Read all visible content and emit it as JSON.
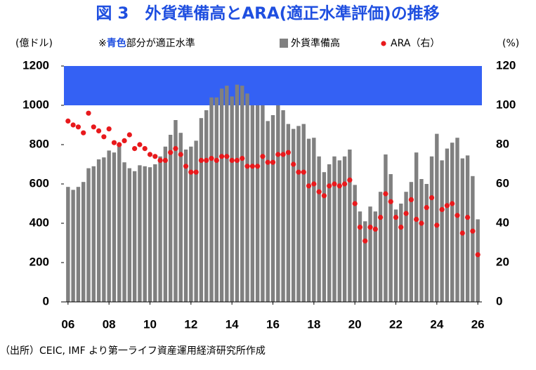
{
  "chart_data": {
    "type": "combo",
    "title": "図 3　外貨準備高とARA(適正水準評価)の推移",
    "y_label": "(億ドル)",
    "y2_label": "(%)",
    "note": {
      "prefix": "※",
      "highlight": "青色",
      "suffix": "部分が適正水準",
      "highlight_color": "#1f4fe0"
    },
    "band": {
      "from": 1000,
      "to": 1200,
      "color": "#3461f4"
    },
    "source": "（出所）CEIC, IMF より第一ライフ資産運用経済研究所作成",
    "x": [
      2006,
      2006.25,
      2006.5,
      2006.75,
      2007,
      2007.25,
      2007.5,
      2007.75,
      2008,
      2008.25,
      2008.5,
      2008.75,
      2009,
      2009.25,
      2009.5,
      2009.75,
      2010,
      2010.25,
      2010.5,
      2010.75,
      2011,
      2011.25,
      2011.5,
      2011.75,
      2012,
      2012.25,
      2012.5,
      2012.75,
      2013,
      2013.25,
      2013.5,
      2013.75,
      2014,
      2014.25,
      2014.5,
      2014.75,
      2015,
      2015.25,
      2015.5,
      2015.75,
      2016,
      2016.25,
      2016.5,
      2016.75,
      2017,
      2017.25,
      2017.5,
      2017.75,
      2018,
      2018.25,
      2018.5,
      2018.75,
      2019,
      2019.25,
      2019.5,
      2019.75,
      2020,
      2020.25,
      2020.5,
      2020.75,
      2021,
      2021.25,
      2021.5,
      2021.75,
      2022,
      2022.25,
      2022.5,
      2022.75,
      2023,
      2023.25,
      2023.5,
      2023.75,
      2024,
      2024.25,
      2024.5,
      2024.75,
      2025,
      2025.25,
      2025.5,
      2025.75,
      2026
    ],
    "series": [
      {
        "name": "外貨準備高",
        "type": "bar",
        "color": "#808080",
        "values": [
          585,
          570,
          585,
          610,
          680,
          690,
          725,
          735,
          770,
          760,
          800,
          710,
          680,
          665,
          695,
          690,
          685,
          700,
          740,
          790,
          850,
          925,
          860,
          775,
          790,
          820,
          935,
          975,
          1040,
          1040,
          1085,
          1100,
          1045,
          1105,
          1100,
          1060,
          1000,
          1000,
          1000,
          920,
          950,
          1000,
          975,
          905,
          880,
          895,
          905,
          830,
          835,
          740,
          660,
          700,
          740,
          720,
          740,
          775,
          595,
          460,
          410,
          485,
          460,
          560,
          750,
          650,
          470,
          500,
          560,
          610,
          760,
          625,
          600,
          740,
          855,
          720,
          780,
          810,
          835,
          730,
          745,
          640,
          420
        ]
      },
      {
        "name": "ARA（右）",
        "type": "scatter",
        "color": "#e8191c",
        "axis": "y2",
        "values": [
          92,
          90,
          89,
          86,
          96,
          89,
          87,
          84,
          88,
          81,
          80,
          82,
          85,
          78,
          80,
          78,
          75,
          74,
          72,
          72,
          76,
          78,
          75,
          69,
          66,
          66,
          72,
          72,
          73,
          72,
          74,
          74,
          72,
          72,
          73,
          69,
          69,
          69,
          74,
          71,
          71,
          75,
          75,
          76,
          70,
          66,
          66,
          59,
          60,
          56,
          54,
          59,
          60,
          59,
          60,
          62,
          50,
          38,
          31,
          38,
          37,
          43,
          55,
          51,
          43,
          38,
          45,
          52,
          42,
          40,
          48,
          53,
          39,
          47,
          49,
          50,
          44,
          35,
          43,
          36,
          24
        ]
      }
    ],
    "xlim": [
      2005.8,
      2026.2
    ],
    "xticks": [
      {
        "value": 2006,
        "label": "06"
      },
      {
        "value": 2008,
        "label": "08"
      },
      {
        "value": 2010,
        "label": "10"
      },
      {
        "value": 2012,
        "label": "12"
      },
      {
        "value": 2014,
        "label": "14"
      },
      {
        "value": 2016,
        "label": "16"
      },
      {
        "value": 2018,
        "label": "18"
      },
      {
        "value": 2020,
        "label": "20"
      },
      {
        "value": 2022,
        "label": "22"
      },
      {
        "value": 2024,
        "label": "24"
      },
      {
        "value": 2026,
        "label": "26"
      }
    ],
    "ylim": [
      0,
      1200
    ],
    "yticks": [
      0,
      200,
      400,
      600,
      800,
      1000,
      1200
    ],
    "y2lim": [
      0,
      120
    ],
    "y2ticks": [
      0,
      20,
      40,
      60,
      80,
      100,
      120
    ]
  }
}
